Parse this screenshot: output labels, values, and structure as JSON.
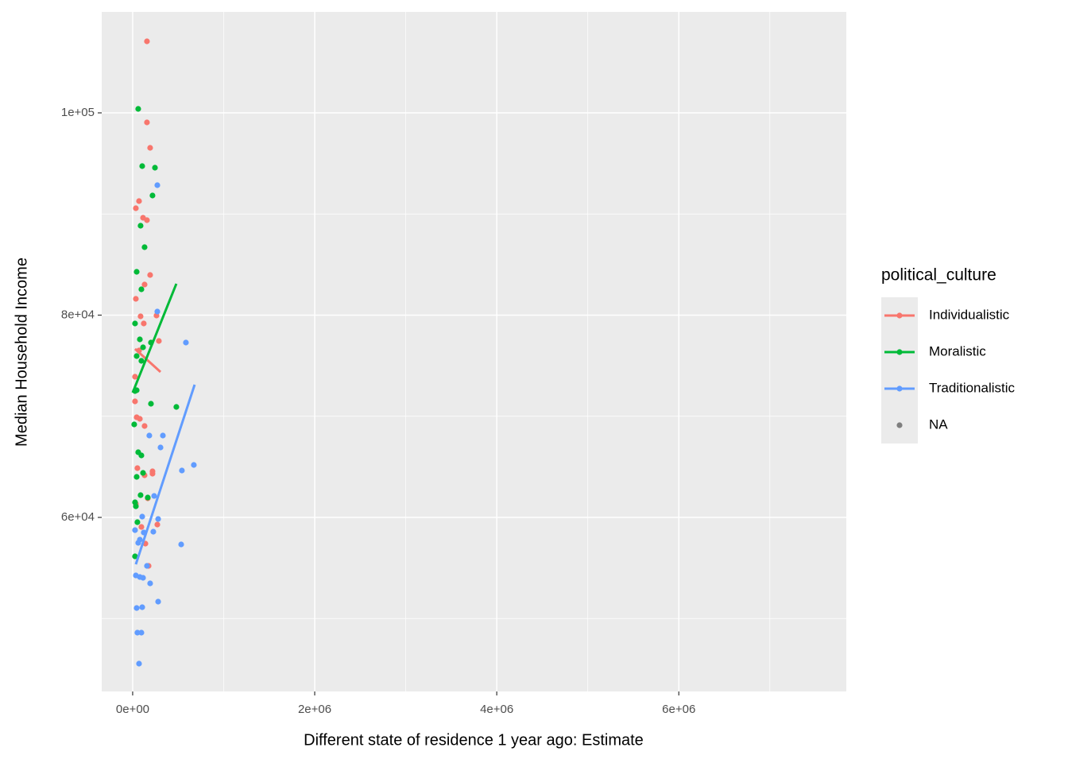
{
  "chart_data": {
    "type": "scatter",
    "x_label": "Different state of residence 1 year ago: Estimate",
    "y_label": "Median Household Income",
    "legend_title": "political_culture",
    "legend_position": "right",
    "grid": true,
    "xlim": [
      -340000,
      7840000
    ],
    "ylim": [
      42790,
      109980
    ],
    "xticks": [
      {
        "value": 0,
        "label": "0e+00"
      },
      {
        "value": 2000000,
        "label": "2e+06"
      },
      {
        "value": 4000000,
        "label": "4e+06"
      },
      {
        "value": 6000000,
        "label": "6e+06"
      }
    ],
    "yticks": [
      {
        "value": 60000,
        "label": "6e+04"
      },
      {
        "value": 80000,
        "label": "8e+04"
      },
      {
        "value": 100000,
        "label": "1e+05"
      }
    ],
    "minor_xticks": [
      1000000,
      3000000,
      5000000,
      7000000
    ],
    "minor_yticks": [
      50000,
      70000,
      90000
    ],
    "series": [
      {
        "name": "Individualistic",
        "color": "#F8766D",
        "x": [
          157000,
          157000,
          192000,
          70000,
          35000,
          114000,
          157000,
          192000,
          131000,
          35000,
          87000,
          262000,
          122000,
          288000,
          70000,
          26000,
          26000,
          44000,
          79000,
          131000,
          52000,
          218000,
          218000,
          131000,
          35000,
          166000,
          271000,
          140000,
          175000,
          96000
        ],
        "values": [
          107073,
          99057,
          96542,
          91277,
          90570,
          89627,
          89391,
          83968,
          83025,
          81611,
          79882,
          79961,
          79175,
          77446,
          76503,
          73910,
          71473,
          69902,
          69745,
          69037,
          64872,
          64558,
          64322,
          64165,
          61336,
          61886,
          59293,
          57407,
          55206,
          59057
        ],
        "trend": {
          "x": [
            26000,
            306000
          ],
          "values": [
            76660,
            74381
          ]
        }
      },
      {
        "name": "Moralistic",
        "color": "#00BA38",
        "x": [
          61000,
          105000,
          245000,
          218000,
          87000,
          131000,
          44000,
          96000,
          26000,
          79000,
          201000,
          114000,
          44000,
          96000,
          26000,
          44000,
          201000,
          480000,
          17000,
          61000,
          96000,
          114000,
          44000,
          87000,
          166000,
          26000,
          35000,
          52000,
          26000
        ],
        "values": [
          100393,
          94735,
          94578,
          91827,
          88841,
          86719,
          84283,
          82554,
          79175,
          77603,
          77289,
          76817,
          75953,
          75481,
          72495,
          72574,
          71238,
          70923,
          69194,
          66444,
          66130,
          64401,
          64008,
          62200,
          61965,
          61493,
          61100,
          59528,
          56149
        ],
        "trend": {
          "x": [
            0,
            480000
          ],
          "values": [
            72338,
            83104
          ]
        }
      },
      {
        "name": "Traditionalistic",
        "color": "#619CFF",
        "x": [
          271000,
          271000,
          585000,
          332000,
          183000,
          306000,
          672000,
          541000,
          236000,
          105000,
          280000,
          26000,
          227000,
          122000,
          79000,
          61000,
          533000,
          157000,
          35000,
          79000,
          114000,
          192000,
          280000,
          44000,
          105000,
          52000,
          96000,
          70000
        ],
        "values": [
          92849,
          80354,
          77289,
          68094,
          68094,
          66915,
          65187,
          64636,
          62122,
          60079,
          59843,
          58743,
          58585,
          58507,
          57800,
          57485,
          57328,
          55206,
          54263,
          54106,
          54028,
          53478,
          51670,
          51041,
          51120,
          48605,
          48605,
          45540
        ],
        "trend": {
          "x": [
            35000,
            681000
          ],
          "values": [
            55363,
            73124
          ]
        }
      },
      {
        "name": "NA",
        "color": "#7F7F7F",
        "x": [],
        "values": []
      }
    ]
  }
}
